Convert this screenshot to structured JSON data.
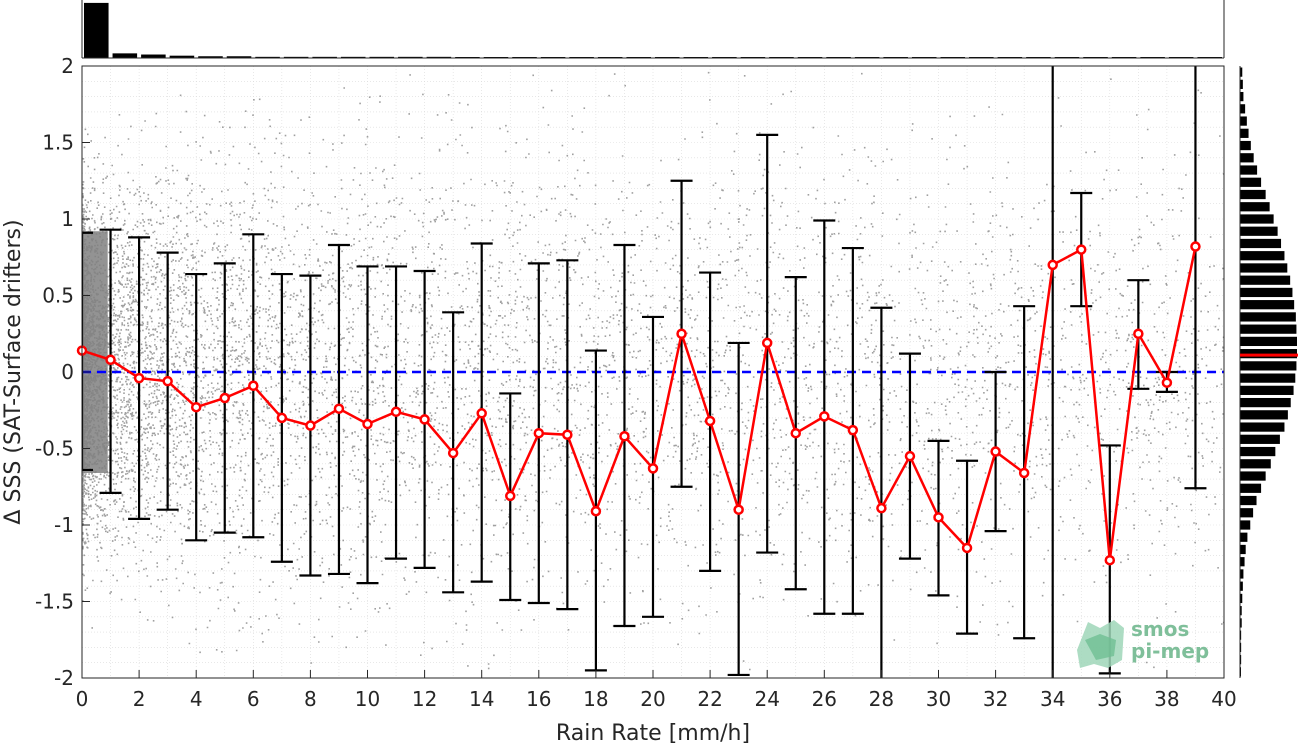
{
  "chart_data": {
    "type": "scatter",
    "xlabel": "Rain Rate [mm/h]",
    "ylabel": "Δ SSS (SAT-Surface drifters)",
    "xlim": [
      0,
      40
    ],
    "ylim": [
      -2,
      2
    ],
    "x_ticks": [
      "0",
      "2",
      "4",
      "6",
      "8",
      "10",
      "12",
      "14",
      "16",
      "18",
      "20",
      "22",
      "24",
      "26",
      "28",
      "30",
      "32",
      "34",
      "36",
      "38",
      "40"
    ],
    "y_ticks": [
      "-2",
      "-1.5",
      "-1",
      "-0.5",
      "0",
      "0.5",
      "1",
      "1.5",
      "2"
    ],
    "grid": true,
    "reference_line_y": 0,
    "series": [
      {
        "x": [
          0,
          1,
          2,
          3,
          4,
          5,
          6,
          7,
          8,
          9,
          10,
          11,
          12,
          13,
          14,
          15,
          16,
          17,
          18,
          19,
          20,
          21,
          22,
          23,
          24,
          25,
          26,
          27,
          28,
          29,
          30,
          31,
          32,
          33,
          34,
          35,
          36,
          37,
          38,
          39
        ],
        "values": [
          0.14,
          0.08,
          -0.04,
          -0.06,
          -0.23,
          -0.17,
          -0.09,
          -0.3,
          -0.35,
          -0.24,
          -0.34,
          -0.26,
          -0.31,
          -0.53,
          -0.27,
          -0.81,
          -0.4,
          -0.41,
          -0.91,
          -0.42,
          -0.63,
          0.25,
          -0.32,
          -0.9,
          0.19,
          -0.4,
          -0.29,
          -0.38,
          -0.89,
          -0.55,
          -0.95,
          -1.15,
          -0.52,
          -0.66,
          0.7,
          0.8,
          -1.23,
          0.25,
          -0.07,
          0.82
        ],
        "err_low": [
          -0.64,
          -0.79,
          -0.96,
          -0.9,
          -1.1,
          -1.05,
          -1.08,
          -1.24,
          -1.33,
          -1.32,
          -1.38,
          -1.22,
          -1.28,
          -1.44,
          -1.37,
          -1.49,
          -1.51,
          -1.55,
          -1.95,
          -1.66,
          -1.6,
          -0.75,
          -1.3,
          -1.98,
          -1.18,
          -1.42,
          -1.58,
          -1.58,
          -2.0,
          -1.22,
          -1.46,
          -1.71,
          -1.04,
          -1.74,
          -2.0,
          0.43,
          -1.97,
          -0.11,
          -0.13,
          -0.76
        ],
        "err_high": [
          0.91,
          0.93,
          0.88,
          0.78,
          0.64,
          0.71,
          0.9,
          0.64,
          0.63,
          0.83,
          0.69,
          0.69,
          0.66,
          0.39,
          0.84,
          -0.14,
          0.71,
          0.73,
          0.14,
          0.83,
          0.36,
          1.25,
          0.65,
          0.19,
          1.55,
          0.62,
          0.99,
          0.81,
          0.42,
          0.12,
          -0.45,
          -0.58,
          0.0,
          0.43,
          2.0,
          1.17,
          -0.48,
          0.6,
          0.0,
          2.0
        ]
      }
    ],
    "top_histogram": [
      0.95,
      0.08,
      0.06,
      0.04,
      0.03,
      0.03,
      0.02,
      0.02,
      0.02,
      0.02,
      0.02,
      0.02,
      0.02,
      0.01,
      0.01,
      0.01,
      0.01,
      0.01,
      0.01,
      0.01,
      0.01,
      0.01,
      0.01,
      0.01,
      0.01,
      0.01,
      0.01,
      0.01,
      0.01,
      0.01,
      0.01,
      0.01,
      0.01,
      0.01,
      0.01,
      0.01,
      0.01,
      0.01,
      0.01,
      0.01
    ],
    "right_histogram": [
      0.04,
      0.05,
      0.06,
      0.09,
      0.12,
      0.15,
      0.19,
      0.24,
      0.3,
      0.37,
      0.45,
      0.52,
      0.59,
      0.66,
      0.72,
      0.78,
      0.83,
      0.88,
      0.92,
      0.95,
      0.98,
      0.99,
      1.0,
      1.0,
      0.99,
      0.97,
      0.94,
      0.89,
      0.84,
      0.78,
      0.7,
      0.62,
      0.54,
      0.45,
      0.37,
      0.29,
      0.23,
      0.18,
      0.13,
      0.1,
      0.08,
      0.06,
      0.05,
      0.04,
      0.03,
      0.03,
      0.02,
      0.02,
      0.02,
      0.01
    ],
    "right_histogram_median": 0.11,
    "colors": {
      "mean_line": "#ff0000",
      "error_bars": "#000000",
      "zero_line": "#0000ff",
      "scatter": "#808080",
      "histogram": "#000000"
    }
  },
  "logo": {
    "line1": "smos",
    "line2": "pi-mep"
  }
}
